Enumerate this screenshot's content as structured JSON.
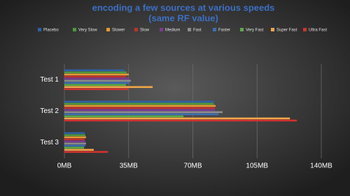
{
  "chart_data": {
    "type": "hbar",
    "title": "encoding a few sources at various speeds",
    "subtitle": "(same RF value)",
    "categories": [
      "Test 1",
      "Test 2",
      "Test 3"
    ],
    "series": [
      {
        "name": "Placebo",
        "color": "#2f5fa6",
        "values": [
          32.8,
          81.6,
          11.1
        ]
      },
      {
        "name": "Very Slow",
        "color": "#4e9a3c",
        "values": [
          34.0,
          81.3,
          11.4
        ]
      },
      {
        "name": "Slower",
        "color": "#e39b32",
        "values": [
          35.1,
          82.4,
          11.8
        ]
      },
      {
        "name": "Slow",
        "color": "#c4312b",
        "values": [
          33.6,
          82.0,
          11.1
        ]
      },
      {
        "name": "Medium",
        "color": "#7b3b93",
        "values": [
          35.5,
          82.0,
          11.4
        ]
      },
      {
        "name": "Fast",
        "color": "#8c8c8c",
        "values": [
          36.2,
          86.2,
          11.8
        ]
      },
      {
        "name": "Faster",
        "color": "#3d6db4",
        "values": [
          35.5,
          84.0,
          11.4
        ]
      },
      {
        "name": "Very Fast",
        "color": "#5cad42",
        "values": [
          33.6,
          64.9,
          10.7
        ]
      },
      {
        "name": "Super Fast",
        "color": "#f2a748",
        "values": [
          48.1,
          122.9,
          16.0
        ]
      },
      {
        "name": "Ultra Fast",
        "color": "#d3322f",
        "values": [
          35.0,
          126.7,
          23.7
        ]
      }
    ],
    "xlim": [
      0,
      140
    ],
    "xticks": [
      {
        "value": 0,
        "label": "0MB"
      },
      {
        "value": 35,
        "label": "35MB"
      },
      {
        "value": 70,
        "label": "70MB"
      },
      {
        "value": 105,
        "label": "105MB"
      },
      {
        "value": 140,
        "label": "140MB"
      }
    ],
    "grid": true,
    "legend": "top"
  }
}
